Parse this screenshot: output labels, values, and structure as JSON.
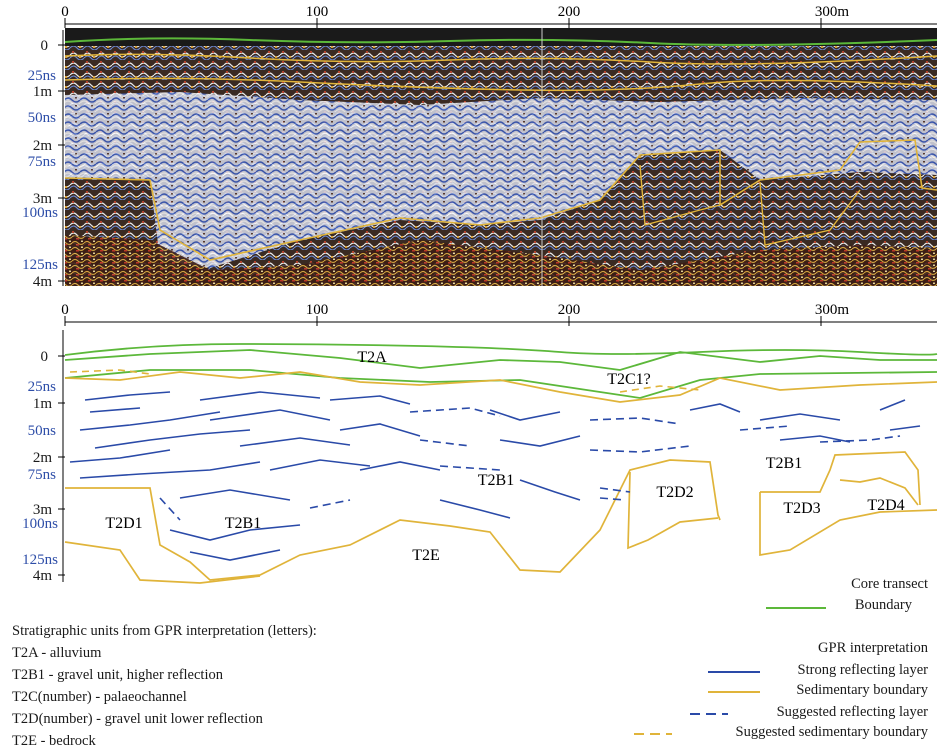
{
  "distance_axis": {
    "ticks": [
      "0",
      "100",
      "200",
      "300m"
    ]
  },
  "depth_axis": {
    "depth_labels": [
      "0",
      "1m",
      "2m",
      "3m",
      "4m"
    ],
    "time_labels": [
      "25ns",
      "50ns",
      "75ns",
      "100ns",
      "125ns"
    ]
  },
  "units": {
    "t2a": "T2A",
    "t2c1": "T2C1?",
    "t2b1_left": "T2B1",
    "t2b1_mid": "T2B1",
    "t2b1_right": "T2B1",
    "t2d1": "T2D1",
    "t2d2": "T2D2",
    "t2d3": "T2D3",
    "t2d4": "T2D4",
    "t2e": "T2E"
  },
  "legend_units": {
    "title": "Stratigraphic units from GPR  interpretation (letters):",
    "items": [
      "T2A - alluvium",
      "T2B1 - gravel unit, higher reflection",
      "T2C(number) - palaeochannel",
      "T2D(number) - gravel unit lower reflection",
      "T2E - bedrock"
    ]
  },
  "legend_core": {
    "title": "Core transect",
    "boundary": "Boundary"
  },
  "legend_gpr": {
    "title": "GPR interpretation",
    "strong": "Strong reflecting layer",
    "sedimentary": "Sedimentary boundary",
    "suggested_reflecting": "Suggested reflecting layer",
    "suggested_sedimentary": "Suggested sedimentary boundary"
  },
  "colors": {
    "core_boundary": "#5cb83a",
    "strong_reflect": "#2a4aa8",
    "sedimentary": "#e0b43a",
    "time_label": "#2e4ea8"
  }
}
